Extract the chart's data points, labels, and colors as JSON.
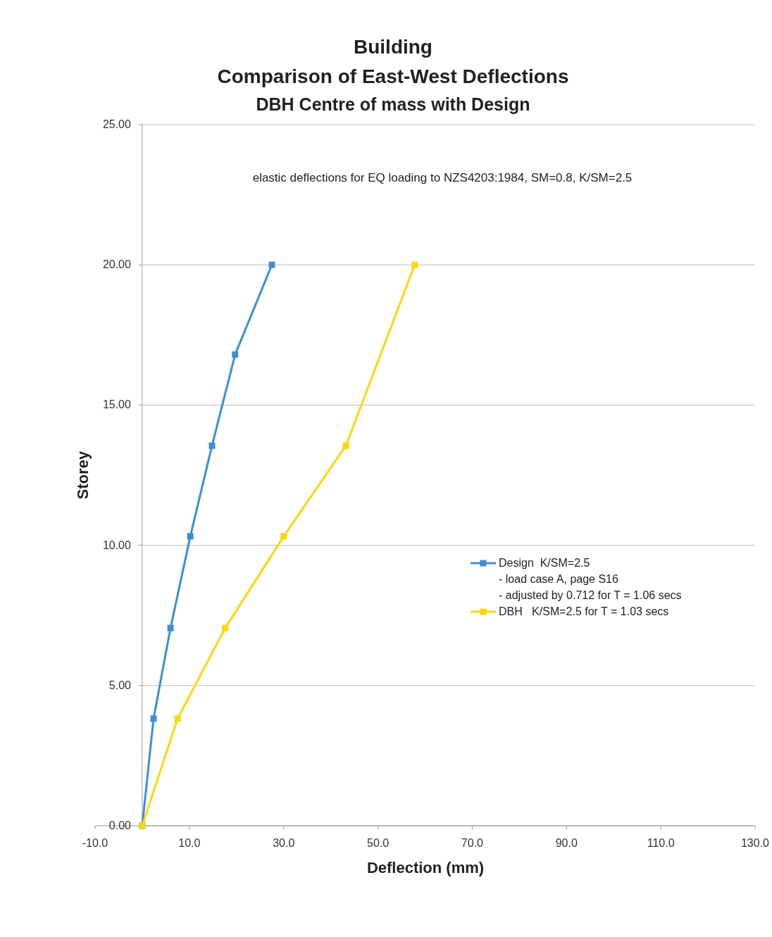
{
  "chart_data": {
    "type": "line",
    "title": "Building",
    "subtitle": [
      "Comparison of East-West Deflections",
      "DBH Centre of mass with Design"
    ],
    "xlabel": "Deflection (mm)",
    "ylabel": "Storey",
    "annotations": [
      "elastic deflections for EQ loading to NZS4203:1984, SM=0.8, K/SM=2.5"
    ],
    "xlim": [
      -10,
      130
    ],
    "xticks": [
      {
        "value": -10,
        "label": "-10.0"
      },
      {
        "value": 10,
        "label": "10.0"
      },
      {
        "value": 30,
        "label": "30.0"
      },
      {
        "value": 50,
        "label": "50.0"
      },
      {
        "value": 70,
        "label": "70.0"
      },
      {
        "value": 90,
        "label": "90.0"
      },
      {
        "value": 110,
        "label": "110.0"
      },
      {
        "value": 130,
        "label": "130.0"
      }
    ],
    "ylim": [
      0,
      25
    ],
    "yticks": [
      {
        "value": 0,
        "label": "0.00"
      },
      {
        "value": 5,
        "label": "5.00"
      },
      {
        "value": 10,
        "label": "10.00"
      },
      {
        "value": 15,
        "label": "15.00"
      },
      {
        "value": 20,
        "label": "20.00"
      },
      {
        "value": 25,
        "label": "25.00"
      }
    ],
    "grid": "y",
    "legend": "right",
    "marker": "square",
    "line_style": "solid",
    "series": [
      {
        "name": "Design  K/SM=2.5\n- load case A, page S16\n- adjusted by 0.712 for T = 1.06 secs",
        "color": "#3a8fdc",
        "x": [
          0,
          2.4,
          6.0,
          10.2,
          14.8,
          19.7,
          27.5
        ],
        "values": [
          0,
          3.82,
          7.05,
          10.32,
          13.55,
          16.8,
          20.0
        ]
      },
      {
        "name": "DBH   K/SM=2.5 for T = 1.03 secs",
        "color": "#ffd700",
        "x": [
          0,
          7.5,
          17.6,
          30.0,
          43.2,
          57.8
        ],
        "values": [
          0,
          3.82,
          7.05,
          10.32,
          13.55,
          20.0
        ]
      }
    ]
  }
}
